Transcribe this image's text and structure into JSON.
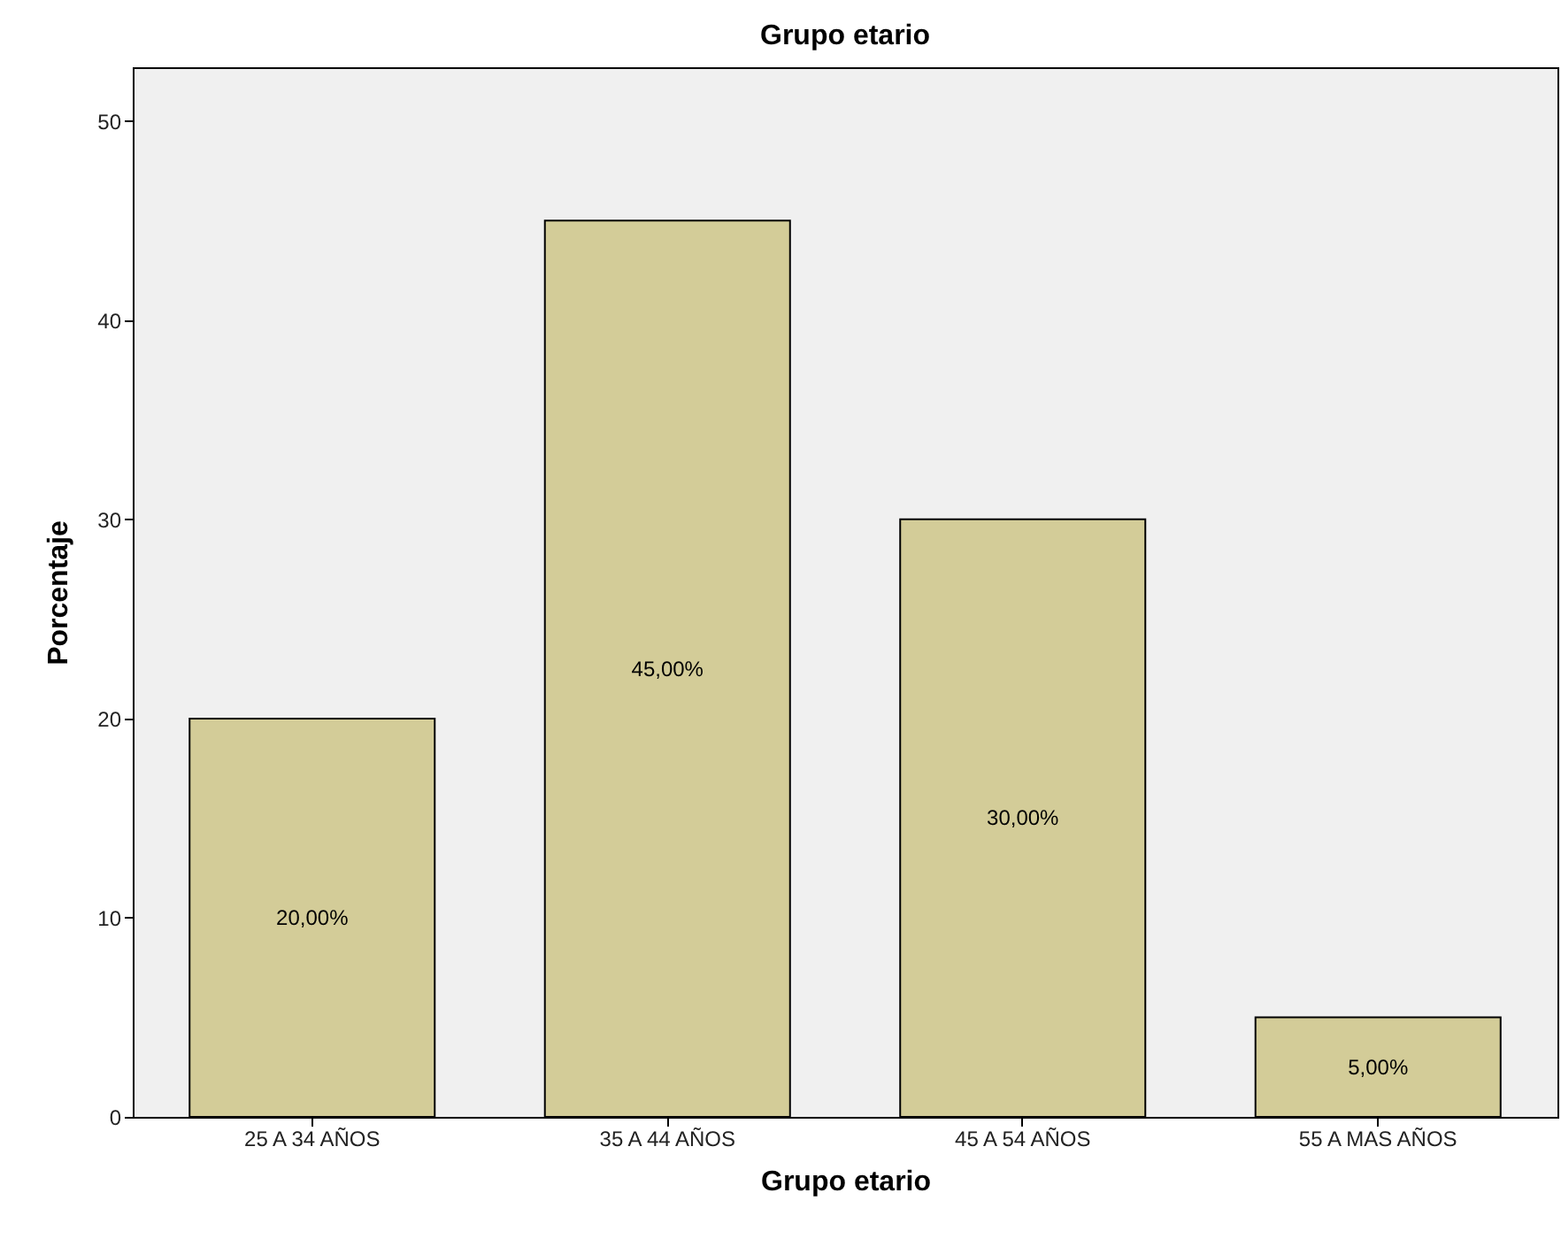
{
  "chart_data": {
    "type": "bar",
    "title": "Grupo etario",
    "xlabel": "Grupo etario",
    "ylabel": "Porcentaje",
    "categories": [
      "25 A 34 AÑOS",
      "35 A 44 AÑOS",
      "45 A 54 AÑOS",
      "55 A MAS AÑOS"
    ],
    "values": [
      20,
      45,
      30,
      5
    ],
    "color": "#d3cc98",
    "value_labels": [
      "20,00%",
      "45,00%",
      "30,00%",
      "5,00%"
    ],
    "ylim": [
      0,
      52.7
    ],
    "yticks": [
      0,
      10,
      20,
      30,
      40,
      50
    ],
    "grid": false
  }
}
